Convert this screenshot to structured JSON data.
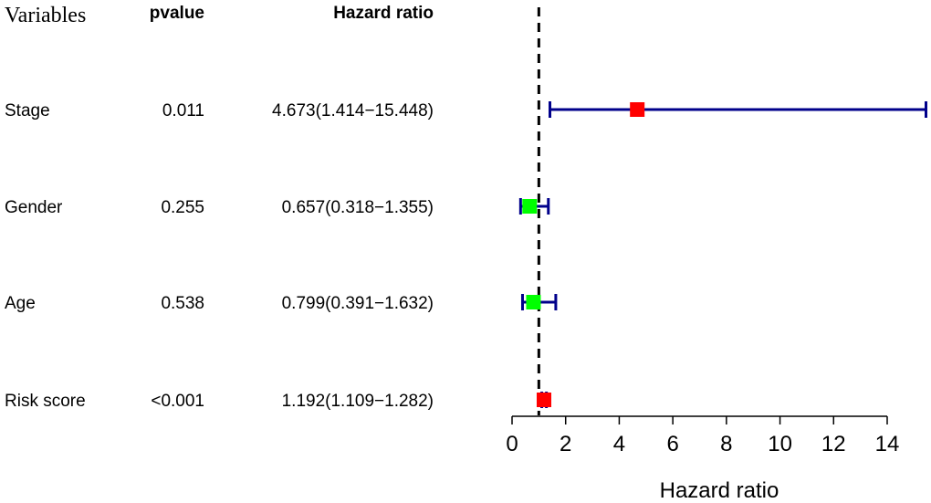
{
  "chart_data": {
    "type": "forest",
    "columns": {
      "variables": "Variables",
      "pvalue": "pvalue",
      "hazard_ratio": "Hazard ratio"
    },
    "rows": [
      {
        "variable": "Stage",
        "pvalue": "0.011",
        "hr_text": "4.673(1.414−15.448)",
        "hr": 4.673,
        "lower": 1.414,
        "upper": 15.448,
        "color": "#ff0000"
      },
      {
        "variable": "Gender",
        "pvalue": "0.255",
        "hr_text": "0.657(0.318−1.355)",
        "hr": 0.657,
        "lower": 0.318,
        "upper": 1.355,
        "color": "#00ff00"
      },
      {
        "variable": "Age",
        "pvalue": "0.538",
        "hr_text": "0.799(0.391−1.632)",
        "hr": 0.799,
        "lower": 0.391,
        "upper": 1.632,
        "color": "#00ff00"
      },
      {
        "variable": "Risk score",
        "pvalue": "<0.001",
        "hr_text": "1.192(1.109−1.282)",
        "hr": 1.192,
        "lower": 1.109,
        "upper": 1.282,
        "color": "#ff0000"
      }
    ],
    "xaxis": {
      "label": "Hazard ratio",
      "ticks": [
        0,
        2,
        4,
        6,
        8,
        10,
        12,
        14
      ],
      "tick_labels": [
        "0",
        "2",
        "4",
        "6",
        "8",
        "10",
        "12",
        "14"
      ],
      "range": [
        0,
        14
      ]
    },
    "reference_line": 1,
    "ci_color": "#00008b"
  }
}
